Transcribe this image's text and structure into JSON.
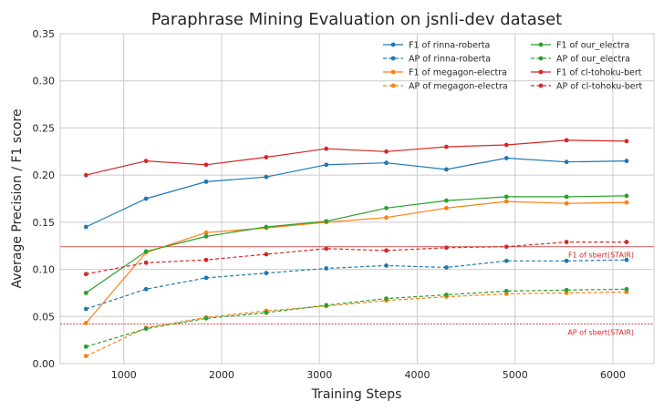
{
  "chart_data": {
    "type": "line",
    "title": "Paraphrase Mining Evaluation on jsnli-dev dataset",
    "xlabel": "Training Steps",
    "ylabel": "Average Precision / F1 score",
    "xlim": [
      350,
      6420
    ],
    "ylim": [
      0,
      0.35
    ],
    "xticks": [
      1000,
      2000,
      3000,
      4000,
      5000,
      6000
    ],
    "xtick_labels": [
      "1000",
      "2000",
      "3000",
      "4000",
      "5000",
      "6000"
    ],
    "yticks": [
      0,
      0.05,
      0.1,
      0.15,
      0.2,
      0.25,
      0.3,
      0.35
    ],
    "ytick_labels": [
      "0.00",
      "0.05",
      "0.10",
      "0.15",
      "0.20",
      "0.25",
      "0.30",
      "0.35"
    ],
    "grid": true,
    "legend_position": "top-right",
    "x": [
      614,
      1228,
      1842,
      2456,
      3070,
      3684,
      4298,
      4912,
      5526,
      6140
    ],
    "series": [
      {
        "name": "F1 of rinna-roberta",
        "color": "#1f77b4",
        "style": "solid",
        "values": [
          0.145,
          0.175,
          0.193,
          0.198,
          0.211,
          0.213,
          0.206,
          0.218,
          0.214,
          0.215
        ]
      },
      {
        "name": "AP of rinna-roberta",
        "color": "#1f77b4",
        "style": "dashed",
        "values": [
          0.058,
          0.079,
          0.091,
          0.096,
          0.101,
          0.104,
          0.102,
          0.109,
          0.109,
          0.11
        ]
      },
      {
        "name": "F1 of megagon-electra",
        "color": "#ff7f0e",
        "style": "solid",
        "values": [
          0.043,
          0.118,
          0.139,
          0.144,
          0.15,
          0.155,
          0.165,
          0.172,
          0.17,
          0.171
        ]
      },
      {
        "name": "AP of megagon-electra",
        "color": "#ff7f0e",
        "style": "dashed",
        "values": [
          0.008,
          0.038,
          0.049,
          0.056,
          0.061,
          0.067,
          0.071,
          0.074,
          0.075,
          0.076
        ]
      },
      {
        "name": "F1 of our_electra",
        "color": "#2ca02c",
        "style": "solid",
        "values": [
          0.075,
          0.119,
          0.135,
          0.145,
          0.151,
          0.165,
          0.173,
          0.177,
          0.177,
          0.178
        ]
      },
      {
        "name": "AP of our_electra",
        "color": "#2ca02c",
        "style": "dashed",
        "values": [
          0.018,
          0.037,
          0.048,
          0.054,
          0.062,
          0.069,
          0.073,
          0.077,
          0.078,
          0.079
        ]
      },
      {
        "name": "F1 of cl-tohoku-bert",
        "color": "#d62728",
        "style": "solid",
        "values": [
          0.2,
          0.215,
          0.211,
          0.219,
          0.228,
          0.225,
          0.23,
          0.232,
          0.237,
          0.236
        ]
      },
      {
        "name": "AP of cl-tohoku-bert",
        "color": "#d62728",
        "style": "dashed",
        "values": [
          0.095,
          0.107,
          0.11,
          0.116,
          0.122,
          0.12,
          0.123,
          0.124,
          0.129,
          0.129
        ]
      }
    ],
    "reference_lines": [
      {
        "label": "F1 of sbert(STAIR)",
        "value": 0.124,
        "color": "#d62728",
        "style": "solid"
      },
      {
        "label": "AP of sbert(STAIR)",
        "value": 0.042,
        "color": "#d62728",
        "style": "dashed"
      }
    ]
  }
}
